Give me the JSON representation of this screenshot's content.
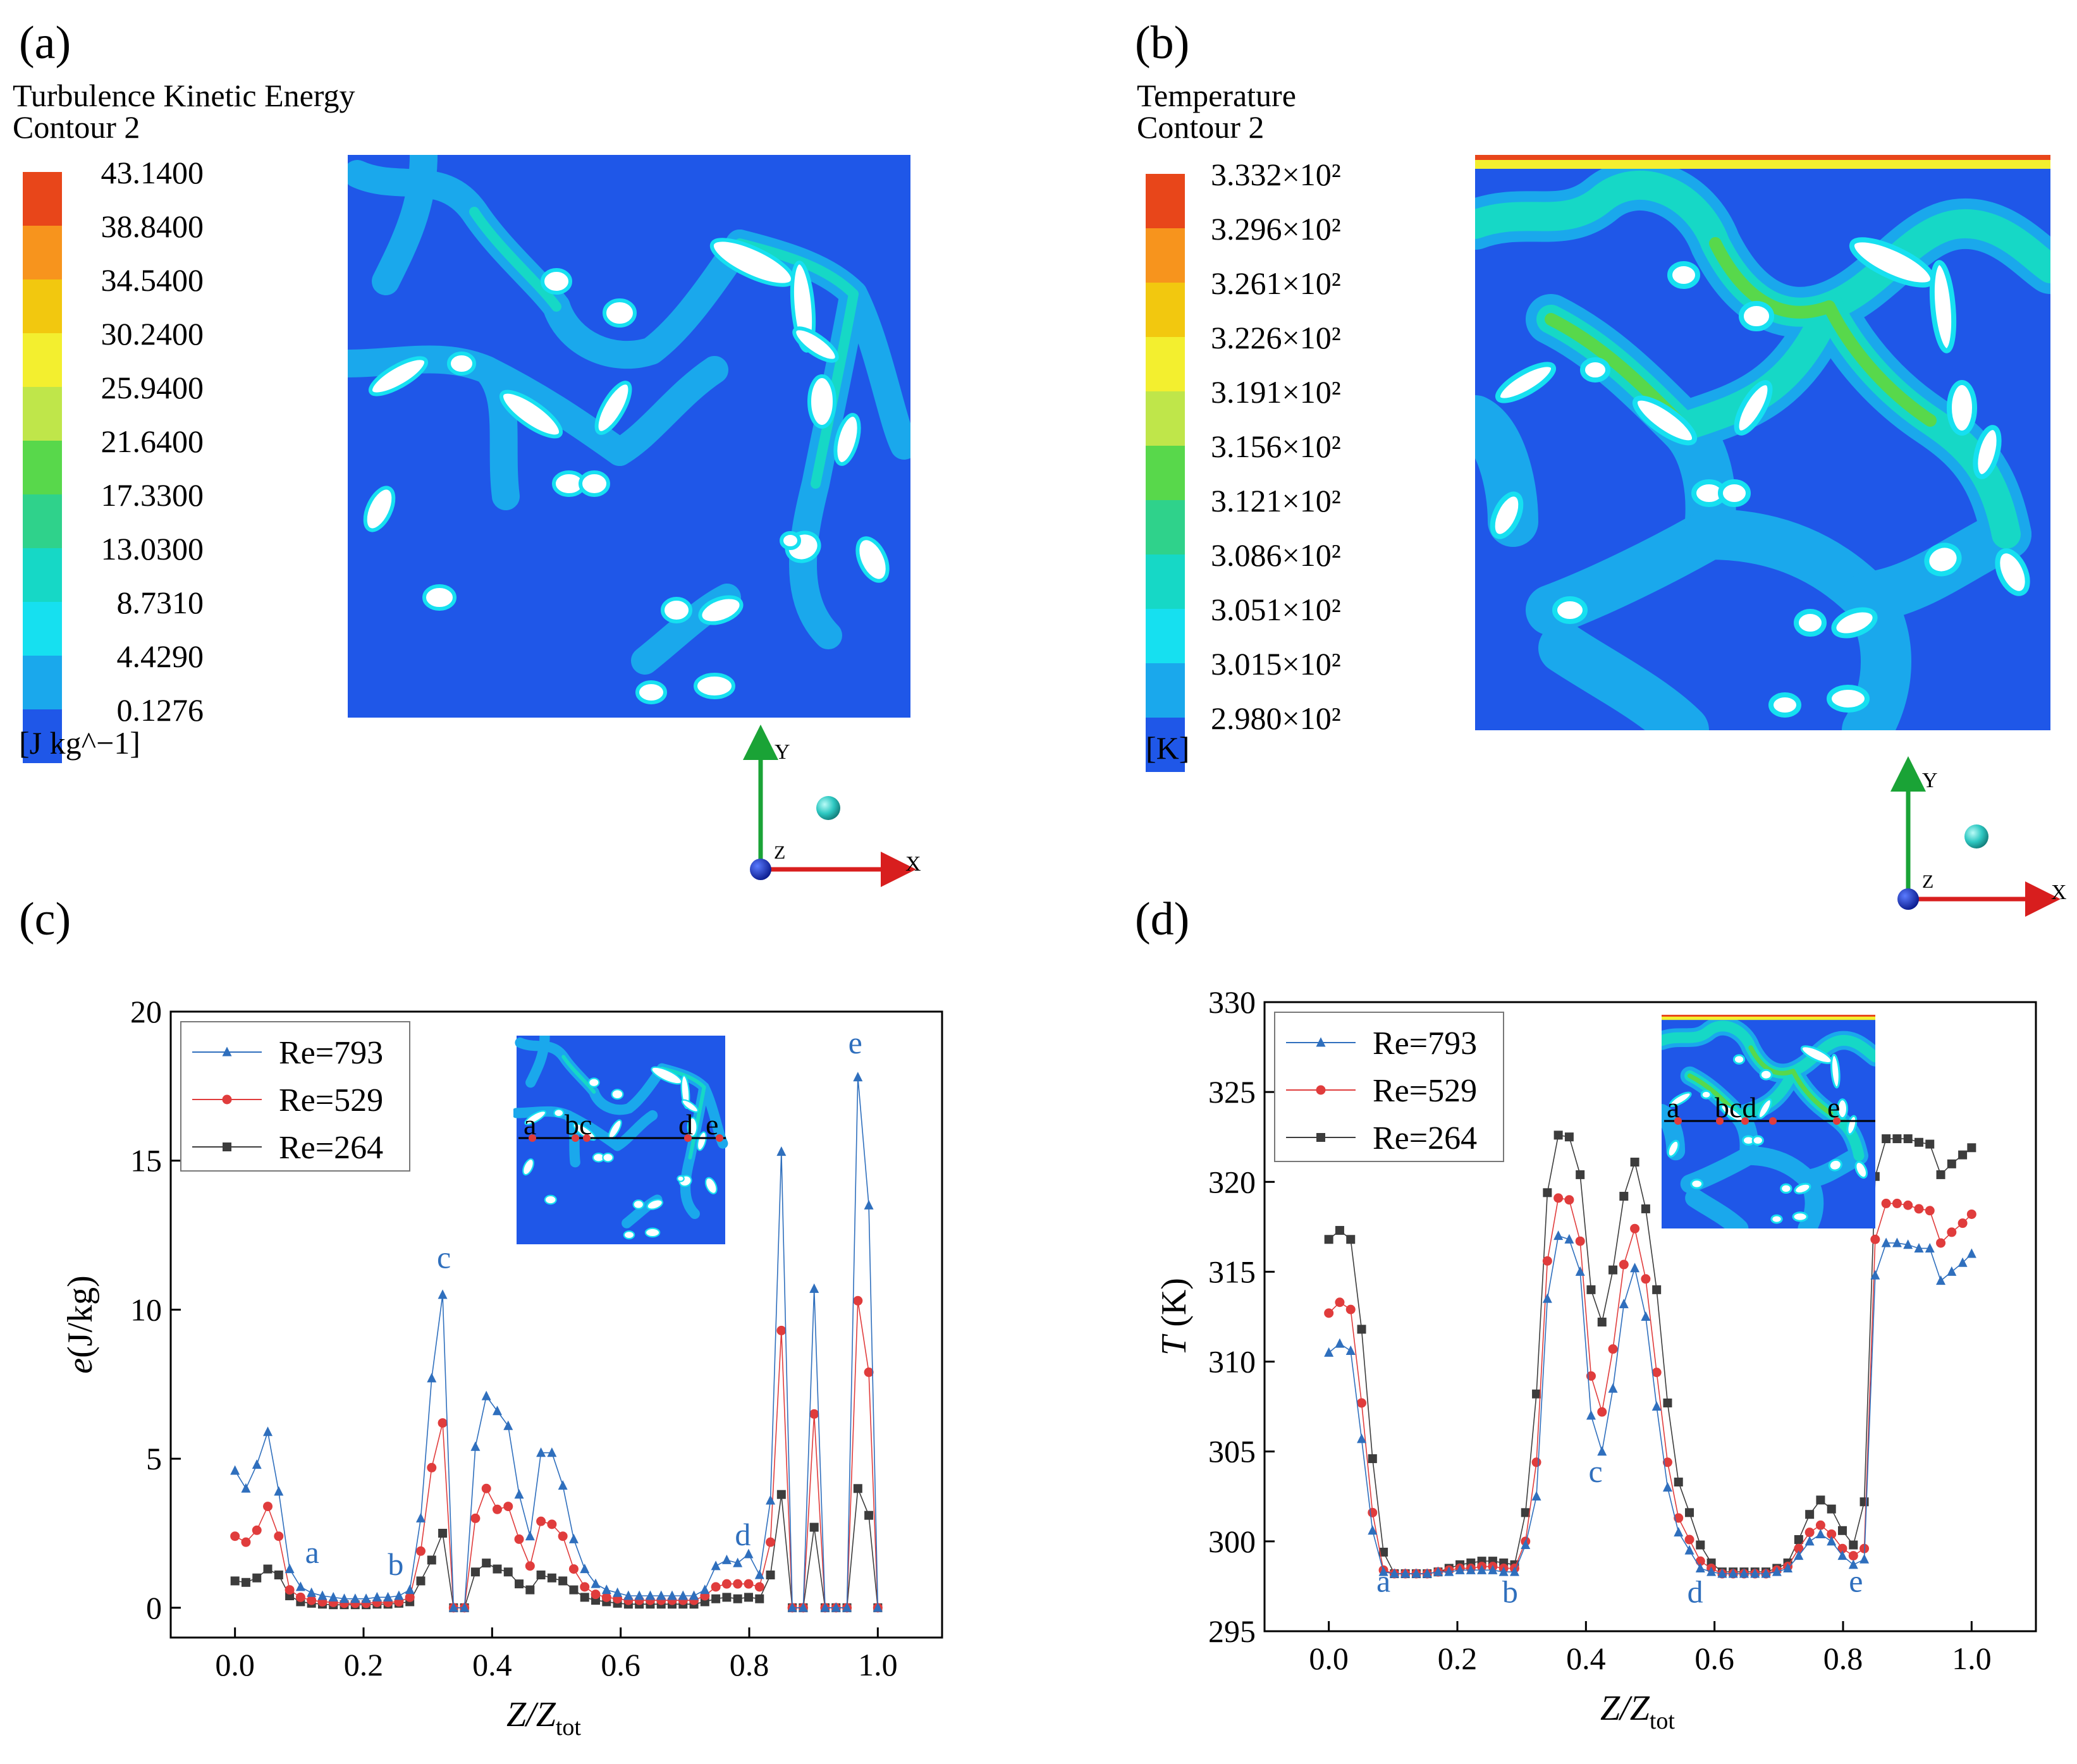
{
  "panels": {
    "a": {
      "tag": "(a)",
      "title_line1": "Turbulence Kinetic Energy",
      "title_line2": "Contour 2",
      "unit": "[J kg^−1]",
      "levels": [
        "43.1400",
        "38.8400",
        "34.5400",
        "30.2400",
        "25.9400",
        "21.6400",
        "17.3300",
        "13.0300",
        "8.7310",
        "4.4290",
        "0.1276"
      ]
    },
    "b": {
      "tag": "(b)",
      "title_line1": "Temperature",
      "title_line2": "Contour 2",
      "unit": "[K]",
      "levels": [
        "3.332×10²",
        "3.296×10²",
        "3.261×10²",
        "3.226×10²",
        "3.191×10²",
        "3.156×10²",
        "3.121×10²",
        "3.086×10²",
        "3.051×10²",
        "3.015×10²",
        "2.980×10²"
      ]
    },
    "c": {
      "tag": "(c)"
    },
    "d": {
      "tag": "(d)"
    }
  },
  "colormap": [
    "#e8461a",
    "#f7941d",
    "#f2c80f",
    "#f3ef2f",
    "#bfe64a",
    "#58d84b",
    "#2fd28b",
    "#16d8c6",
    "#16e0f0",
    "#1aa8ec",
    "#1f57e8"
  ],
  "axes_triad": {
    "x": "X",
    "y": "Y",
    "z": "Z"
  },
  "chart_data": [
    {
      "type": "line",
      "title": "",
      "xlabel": "Z/Z",
      "xlabel_sub": "tot",
      "ylabel": "e(J/kg)",
      "xlim": [
        -0.1,
        1.1
      ],
      "ylim": [
        -1,
        20
      ],
      "xticks": [
        0.0,
        0.2,
        0.4,
        0.6,
        0.8,
        1.0
      ],
      "xtick_labels": [
        "0.0",
        "0.2",
        "0.4",
        "0.6",
        "0.8",
        "1.0"
      ],
      "yticks": [
        0,
        5,
        10,
        15,
        20
      ],
      "ytick_labels": [
        "0",
        "5",
        "10",
        "15",
        "20"
      ],
      "legend": [
        "Re=793",
        "Re=529",
        "Re=264"
      ],
      "legend_position": "top-left",
      "x": [
        0.0,
        0.017,
        0.034,
        0.051,
        0.068,
        0.085,
        0.102,
        0.119,
        0.136,
        0.153,
        0.17,
        0.187,
        0.204,
        0.221,
        0.238,
        0.255,
        0.272,
        0.289,
        0.306,
        0.323,
        0.34,
        0.357,
        0.374,
        0.391,
        0.408,
        0.425,
        0.442,
        0.459,
        0.476,
        0.493,
        0.51,
        0.527,
        0.544,
        0.561,
        0.578,
        0.595,
        0.612,
        0.629,
        0.646,
        0.663,
        0.68,
        0.697,
        0.714,
        0.731,
        0.748,
        0.765,
        0.782,
        0.799,
        0.816,
        0.833,
        0.85,
        0.867,
        0.884,
        0.901,
        0.918,
        0.935,
        0.952,
        0.969,
        0.986,
        1.0
      ],
      "series": [
        {
          "name": "Re=793",
          "color": "#2f6fbd",
          "marker": "triangle",
          "values": [
            4.6,
            4.0,
            4.8,
            5.9,
            3.9,
            1.3,
            0.7,
            0.5,
            0.4,
            0.35,
            0.3,
            0.3,
            0.3,
            0.35,
            0.35,
            0.4,
            0.6,
            3.0,
            7.7,
            10.5,
            0.0,
            0.0,
            5.4,
            7.1,
            6.6,
            6.1,
            3.8,
            2.4,
            5.2,
            5.2,
            4.1,
            2.3,
            1.3,
            0.8,
            0.6,
            0.5,
            0.4,
            0.4,
            0.4,
            0.4,
            0.4,
            0.4,
            0.4,
            0.6,
            1.4,
            1.6,
            1.5,
            1.8,
            1.1,
            3.6,
            15.3,
            0.0,
            0.0,
            10.7,
            0.0,
            0.0,
            0.0,
            17.8,
            13.5,
            0.0
          ]
        },
        {
          "name": "Re=529",
          "color": "#e03c3c",
          "marker": "circle",
          "values": [
            2.4,
            2.2,
            2.6,
            3.4,
            2.4,
            0.6,
            0.35,
            0.25,
            0.2,
            0.18,
            0.15,
            0.15,
            0.15,
            0.18,
            0.18,
            0.2,
            0.35,
            1.9,
            4.7,
            6.2,
            0.0,
            0.0,
            3.0,
            4.0,
            3.3,
            3.4,
            2.3,
            1.4,
            2.9,
            2.8,
            2.4,
            1.3,
            0.7,
            0.45,
            0.35,
            0.3,
            0.25,
            0.25,
            0.25,
            0.25,
            0.25,
            0.25,
            0.25,
            0.4,
            0.7,
            0.8,
            0.8,
            0.8,
            0.7,
            2.2,
            9.3,
            0.0,
            0.0,
            6.5,
            0.0,
            0.0,
            0.0,
            10.3,
            7.9,
            0.0
          ]
        },
        {
          "name": "Re=264",
          "color": "#3c3c3c",
          "marker": "square",
          "values": [
            0.9,
            0.85,
            1.0,
            1.3,
            1.1,
            0.4,
            0.2,
            0.15,
            0.12,
            0.1,
            0.1,
            0.1,
            0.1,
            0.12,
            0.12,
            0.15,
            0.2,
            0.9,
            1.6,
            2.5,
            0.0,
            0.0,
            1.2,
            1.5,
            1.3,
            1.2,
            0.8,
            0.6,
            1.1,
            1.0,
            0.9,
            0.6,
            0.35,
            0.25,
            0.2,
            0.15,
            0.12,
            0.12,
            0.12,
            0.12,
            0.12,
            0.12,
            0.12,
            0.2,
            0.3,
            0.35,
            0.3,
            0.35,
            0.3,
            1.1,
            3.8,
            0.0,
            0.0,
            2.7,
            0.0,
            0.0,
            0.0,
            4.0,
            3.1,
            0.0
          ]
        }
      ],
      "annotations": [
        {
          "text": "a",
          "x": 0.12,
          "y": 1.5
        },
        {
          "text": "b",
          "x": 0.25,
          "y": 1.1
        },
        {
          "text": "c",
          "x": 0.325,
          "y": 11.4
        },
        {
          "text": "d",
          "x": 0.79,
          "y": 2.1
        },
        {
          "text": "e",
          "x": 0.965,
          "y": 18.6
        }
      ],
      "inset_labels": [
        "a",
        "bc",
        "d",
        "e"
      ]
    },
    {
      "type": "line",
      "title": "",
      "xlabel": "Z/Z",
      "xlabel_sub": "tot",
      "ylabel": "T (K)",
      "ylabel_italic": "T",
      "ylabel_rest": " (K)",
      "xlim": [
        -0.1,
        1.1
      ],
      "ylim": [
        295,
        330
      ],
      "xticks": [
        0.0,
        0.2,
        0.4,
        0.6,
        0.8,
        1.0
      ],
      "xtick_labels": [
        "0.0",
        "0.2",
        "0.4",
        "0.6",
        "0.8",
        "1.0"
      ],
      "yticks": [
        295,
        300,
        305,
        310,
        315,
        320,
        325,
        330
      ],
      "ytick_labels": [
        "295",
        "300",
        "305",
        "310",
        "315",
        "320",
        "325",
        "330"
      ],
      "legend": [
        "Re=793",
        "Re=529",
        "Re=264"
      ],
      "legend_position": "top-left",
      "x": [
        0.0,
        0.017,
        0.034,
        0.051,
        0.068,
        0.085,
        0.102,
        0.119,
        0.136,
        0.153,
        0.17,
        0.187,
        0.204,
        0.221,
        0.238,
        0.255,
        0.272,
        0.289,
        0.306,
        0.323,
        0.34,
        0.357,
        0.374,
        0.391,
        0.408,
        0.425,
        0.442,
        0.459,
        0.476,
        0.493,
        0.51,
        0.527,
        0.544,
        0.561,
        0.578,
        0.595,
        0.612,
        0.629,
        0.646,
        0.663,
        0.68,
        0.697,
        0.714,
        0.731,
        0.748,
        0.765,
        0.782,
        0.799,
        0.816,
        0.833,
        0.85,
        0.867,
        0.884,
        0.901,
        0.918,
        0.935,
        0.952,
        0.969,
        0.986,
        1.0
      ],
      "series": [
        {
          "name": "Re=793",
          "color": "#2f6fbd",
          "marker": "triangle",
          "values": [
            310.5,
            311.0,
            310.6,
            305.7,
            300.6,
            298.3,
            298.2,
            298.2,
            298.2,
            298.2,
            298.3,
            298.3,
            298.4,
            298.4,
            298.4,
            298.4,
            298.3,
            298.3,
            299.8,
            302.5,
            313.5,
            317.0,
            316.8,
            315.0,
            307.0,
            305.0,
            308.5,
            313.2,
            315.2,
            312.5,
            307.5,
            303.0,
            300.5,
            299.5,
            298.5,
            298.3,
            298.2,
            298.2,
            298.2,
            298.2,
            298.2,
            298.3,
            298.5,
            299.2,
            300.0,
            300.4,
            300.0,
            299.2,
            298.7,
            299.0,
            314.8,
            316.6,
            316.6,
            316.5,
            316.3,
            316.3,
            314.5,
            315.0,
            315.5,
            316.0
          ]
        },
        {
          "name": "Re=529",
          "color": "#e03c3c",
          "marker": "circle",
          "values": [
            312.7,
            313.3,
            312.9,
            307.7,
            301.6,
            298.4,
            298.2,
            298.2,
            298.2,
            298.2,
            298.3,
            298.4,
            298.5,
            298.5,
            298.6,
            298.6,
            298.5,
            298.5,
            300.0,
            304.4,
            315.6,
            319.1,
            319.0,
            316.7,
            309.2,
            307.2,
            310.7,
            315.4,
            317.4,
            314.6,
            309.4,
            304.4,
            301.3,
            300.1,
            298.9,
            298.5,
            298.2,
            298.2,
            298.2,
            298.2,
            298.2,
            298.4,
            298.6,
            299.6,
            300.5,
            300.9,
            300.4,
            299.6,
            299.2,
            299.6,
            316.8,
            318.8,
            318.8,
            318.7,
            318.5,
            318.4,
            316.6,
            317.2,
            317.7,
            318.2
          ]
        },
        {
          "name": "Re=264",
          "color": "#3c3c3c",
          "marker": "square",
          "values": [
            316.8,
            317.3,
            316.8,
            311.8,
            304.6,
            299.4,
            298.2,
            298.2,
            298.2,
            298.2,
            298.3,
            298.5,
            298.7,
            298.8,
            298.9,
            298.9,
            298.8,
            298.7,
            301.6,
            308.2,
            319.4,
            322.6,
            322.5,
            320.4,
            314.0,
            312.2,
            315.1,
            319.2,
            321.1,
            318.5,
            314.0,
            307.7,
            303.3,
            301.6,
            299.8,
            298.8,
            298.3,
            298.3,
            298.3,
            298.3,
            298.3,
            298.5,
            298.8,
            300.1,
            301.5,
            302.3,
            301.8,
            300.6,
            299.8,
            302.2,
            320.3,
            322.4,
            322.4,
            322.4,
            322.2,
            322.1,
            320.4,
            321.0,
            321.5,
            321.9
          ]
        }
      ],
      "annotations": [
        {
          "text": "a",
          "x": 0.085,
          "y": 297.2
        },
        {
          "text": "b",
          "x": 0.282,
          "y": 296.6
        },
        {
          "text": "c",
          "x": 0.415,
          "y": 303.3
        },
        {
          "text": "d",
          "x": 0.57,
          "y": 296.6
        },
        {
          "text": "e",
          "x": 0.82,
          "y": 297.2
        }
      ],
      "inset_labels": [
        "a",
        "bcd",
        "e"
      ]
    }
  ]
}
